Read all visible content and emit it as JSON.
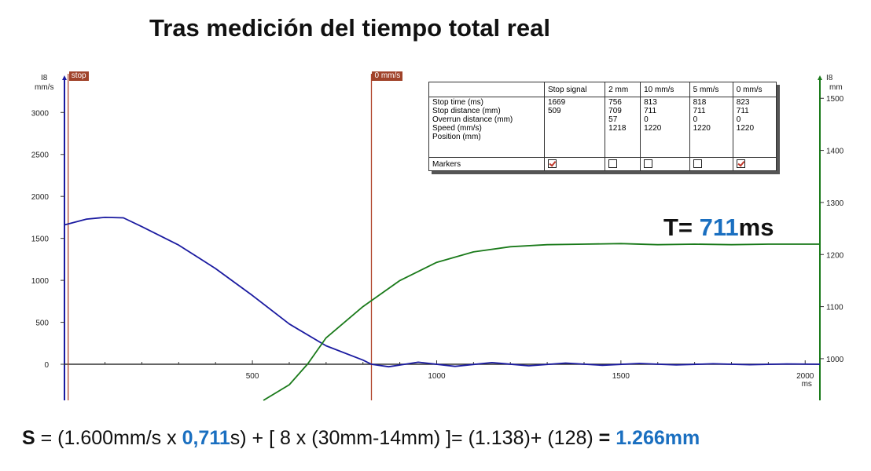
{
  "title": "Tras medición del tiempo total real",
  "colors": {
    "speed": "#1a1aa0",
    "position": "#1a7a1a",
    "marker": "#b0432a",
    "highlight": "#1a6fc0"
  },
  "chart_data": {
    "type": "line",
    "x_unit": "ms",
    "xlim": [
      -10,
      2040
    ],
    "x_ticks": [
      "500",
      "1000",
      "1500",
      "2000"
    ],
    "left_axis": {
      "label_top": "I8",
      "label_unit": "mm/s",
      "ylim": [
        -430,
        3330
      ],
      "ticks": [
        "0",
        "500",
        "1000",
        "1500",
        "2000",
        "2500",
        "3000"
      ]
    },
    "right_axis": {
      "label_top": "I8",
      "label_unit": "mm",
      "ylim": [
        920,
        1526
      ],
      "ticks": [
        "1000",
        "1100",
        "1200",
        "1300",
        "1400",
        "1500"
      ]
    },
    "markers": [
      {
        "label": "stop",
        "x": 0
      },
      {
        "label": "0 mm/s",
        "x": 823
      }
    ],
    "series": [
      {
        "axis": "left",
        "color": "#1a1aa0",
        "points": [
          [
            -10,
            1660
          ],
          [
            50,
            1730
          ],
          [
            100,
            1750
          ],
          [
            150,
            1745
          ],
          [
            200,
            1640
          ],
          [
            300,
            1420
          ],
          [
            400,
            1140
          ],
          [
            500,
            820
          ],
          [
            600,
            480
          ],
          [
            700,
            220
          ],
          [
            800,
            50
          ],
          [
            823,
            0
          ],
          [
            870,
            -30
          ],
          [
            950,
            25
          ],
          [
            1050,
            -25
          ],
          [
            1150,
            20
          ],
          [
            1250,
            -18
          ],
          [
            1350,
            14
          ],
          [
            1450,
            -12
          ],
          [
            1550,
            10
          ],
          [
            1650,
            -8
          ],
          [
            1750,
            6
          ],
          [
            1850,
            -5
          ],
          [
            1950,
            4
          ],
          [
            2040,
            0
          ]
        ]
      },
      {
        "axis": "right",
        "color": "#1a7a1a",
        "points": [
          [
            530,
            920
          ],
          [
            600,
            950
          ],
          [
            650,
            990
          ],
          [
            700,
            1040
          ],
          [
            800,
            1100
          ],
          [
            900,
            1150
          ],
          [
            1000,
            1185
          ],
          [
            1100,
            1205
          ],
          [
            1200,
            1215
          ],
          [
            1300,
            1219
          ],
          [
            1400,
            1220
          ],
          [
            1500,
            1221
          ],
          [
            1600,
            1219
          ],
          [
            1700,
            1220
          ],
          [
            1800,
            1219
          ],
          [
            1900,
            1220
          ],
          [
            2040,
            1220
          ]
        ]
      }
    ]
  },
  "table": {
    "header": [
      "",
      "Stop signal",
      "2 mm",
      "10 mm/s",
      "5 mm/s",
      "0 mm/s"
    ],
    "row_labels": [
      "Stop time (ms)",
      "Stop distance (mm)",
      "Overrun distance (mm)",
      "Speed (mm/s)",
      "Position (mm)"
    ],
    "columns": [
      [
        "",
        "",
        "",
        "1669",
        "509"
      ],
      [
        "756",
        "709",
        "",
        "57",
        "1218"
      ],
      [
        "813",
        "711",
        "0",
        "",
        "1220"
      ],
      [
        "818",
        "711",
        "0",
        "",
        "1220"
      ],
      [
        "823",
        "711",
        "0",
        "",
        "1220"
      ]
    ],
    "markers_label": "Markers",
    "markers_checked": [
      true,
      false,
      false,
      false,
      true
    ]
  },
  "t_label": {
    "prefix": "T= ",
    "value": "711",
    "suffix": "ms"
  },
  "formula": {
    "s": "S",
    "part1": " = (1.600mm/s x ",
    "val1": "0,711",
    "part2": "s) + [ 8 x (30mm-14mm) ]=  (1.138)+  (128) ",
    "eq": "= ",
    "result": "1.266mm"
  }
}
